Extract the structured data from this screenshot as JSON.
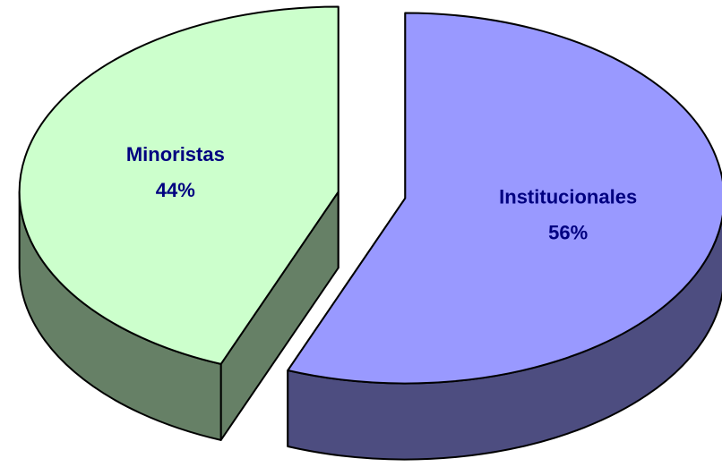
{
  "chart_data": {
    "type": "pie",
    "categories": [
      "Institucionales",
      "Minoristas"
    ],
    "values": [
      56,
      44
    ],
    "value_labels": [
      "56%",
      "44%"
    ],
    "colors": [
      "#9999ff",
      "#ccffcc"
    ],
    "side_colors": [
      "#4d4d80",
      "#668066"
    ],
    "label_color": "#000080"
  }
}
